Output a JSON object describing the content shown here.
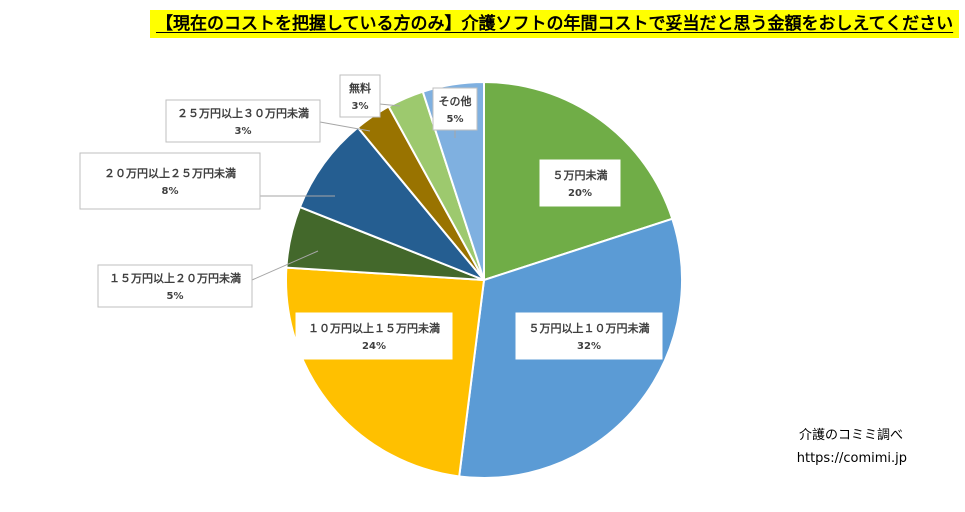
{
  "title": "【現在のコストを把握している方のみ】介護ソフトの年間コストで妥当だと思う金額をおしえてください",
  "credit": {
    "name": "介護のコミミ調べ",
    "url": "https://comimi.jp"
  },
  "chart_data": {
    "type": "pie",
    "title": "【現在のコストを把握している方のみ】介護ソフトの年間コストで妥当だと思う金額をおしえてください",
    "slices": [
      {
        "label": "５万円未満",
        "value": 20,
        "display": "20%",
        "color": "#70ad47"
      },
      {
        "label": "５万円以上１０万円未満",
        "value": 32,
        "display": "32%",
        "color": "#5b9bd5"
      },
      {
        "label": "１０万円以上１５万円未満",
        "value": 24,
        "display": "24%",
        "color": "#ffc000"
      },
      {
        "label": "１５万円以上２０万円未満",
        "value": 5,
        "display": "5%",
        "color": "#43682b"
      },
      {
        "label": "２０万円以上２５万円未満",
        "value": 8,
        "display": "8%",
        "color": "#255e91"
      },
      {
        "label": "２５万円以上３０万円未満",
        "value": 3,
        "display": "3%",
        "color": "#997300"
      },
      {
        "label": "無料",
        "value": 3,
        "display": "3%",
        "color": "#9dc96e"
      },
      {
        "label": "その他",
        "value": 5,
        "display": "5%",
        "color": "#7fb0e0"
      }
    ]
  }
}
